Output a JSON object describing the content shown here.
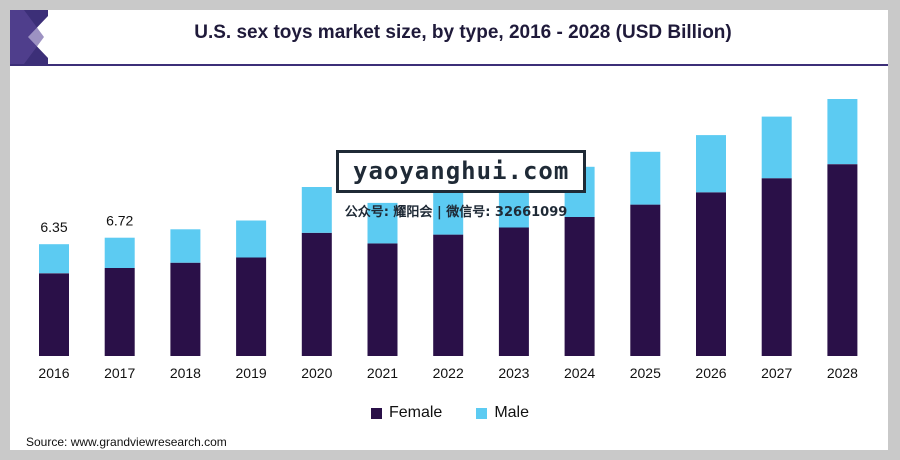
{
  "chart_data": {
    "type": "bar",
    "stacked": true,
    "title": "U.S. sex toys market size, by type, 2016 - 2028 (USD Billion)",
    "categories": [
      "2016",
      "2017",
      "2018",
      "2019",
      "2020",
      "2021",
      "2022",
      "2023",
      "2024",
      "2025",
      "2026",
      "2027",
      "2028"
    ],
    "series": [
      {
        "name": "Female",
        "color": "#2a1048",
        "values": [
          4.7,
          5.0,
          5.3,
          5.6,
          7.0,
          6.4,
          6.9,
          7.3,
          7.9,
          8.6,
          9.3,
          10.1,
          10.9
        ]
      },
      {
        "name": "Male",
        "color": "#5ccbf2",
        "values": [
          1.65,
          1.72,
          1.9,
          2.1,
          2.6,
          2.3,
          2.5,
          2.7,
          2.85,
          3.0,
          3.25,
          3.5,
          3.7
        ]
      }
    ],
    "data_labels": [
      {
        "category": "2016",
        "text": "6.35"
      },
      {
        "category": "2017",
        "text": "6.72"
      }
    ],
    "ylim": [
      0,
      15
    ],
    "legend": "bottom",
    "grid": false
  },
  "legend": {
    "female": "Female",
    "male": "Male"
  },
  "source": "Source: www.grandviewresearch.com",
  "watermark": {
    "main": "yaoyanghui.com",
    "sub": "公众号: 耀阳会 | 微信号: 32661099"
  }
}
